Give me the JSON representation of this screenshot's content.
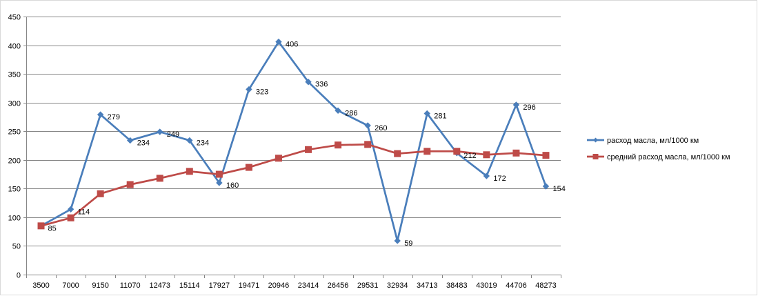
{
  "chart_data": {
    "type": "line",
    "title": "",
    "xlabel": "",
    "ylabel": "",
    "categories": [
      "3500",
      "7000",
      "9150",
      "11070",
      "12473",
      "15114",
      "17927",
      "19471",
      "20946",
      "23414",
      "26456",
      "29531",
      "32934",
      "34713",
      "38483",
      "43019",
      "44706",
      "48273"
    ],
    "ylim": [
      0,
      450
    ],
    "yticks": [
      0,
      50,
      100,
      150,
      200,
      250,
      300,
      350,
      400,
      450
    ],
    "grid": "horizontal",
    "legend_position": "right",
    "series": [
      {
        "name": "расход масла, мл/1000 км",
        "color": "#4a7ebb",
        "marker": "diamond",
        "values": [
          85,
          114,
          279,
          234,
          249,
          234,
          160,
          323,
          406,
          336,
          286,
          260,
          59,
          281,
          212,
          172,
          296,
          154
        ],
        "labels": [
          "85",
          "114",
          "279",
          "234",
          "249",
          "234",
          "160",
          "323",
          "406",
          "336",
          "286",
          "260",
          "59",
          "281",
          "212",
          "172",
          "296",
          "154"
        ]
      },
      {
        "name": "средний расход масла, мл/1000 км",
        "color": "#be4b48",
        "marker": "square",
        "values": [
          85,
          99,
          141,
          157,
          168,
          180,
          175,
          187,
          203,
          218,
          226,
          227,
          211,
          215,
          215,
          209,
          212,
          208
        ],
        "labels": []
      }
    ]
  }
}
